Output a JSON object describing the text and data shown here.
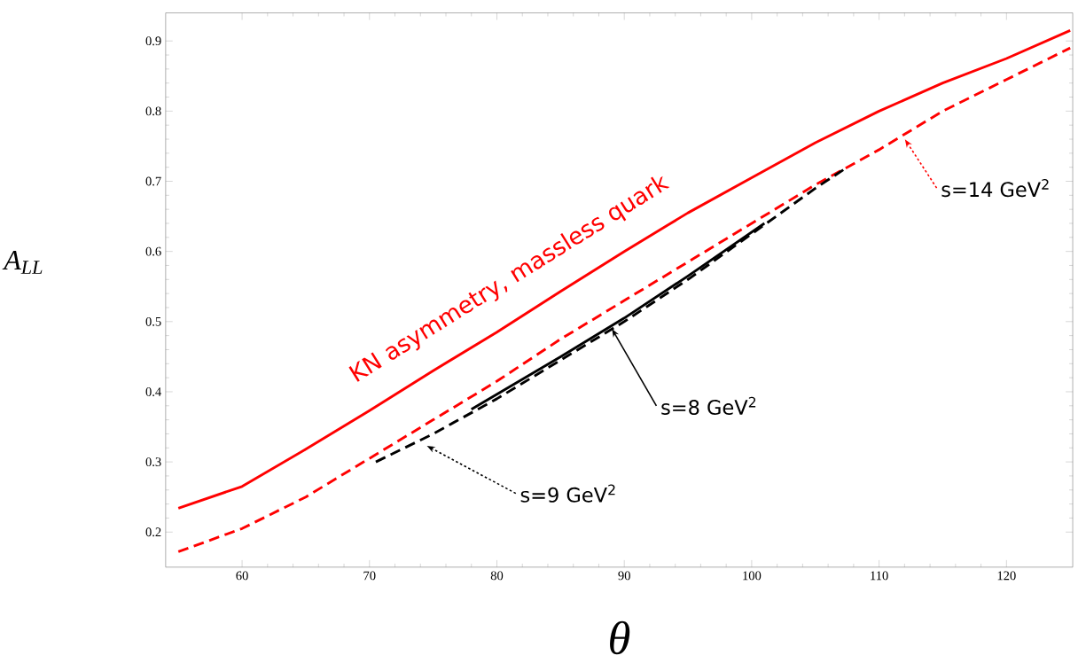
{
  "chart_data": {
    "type": "line",
    "xlabel": "θ",
    "ylabel": "A$_{LL}$",
    "xlim": [
      54,
      125.2
    ],
    "ylim": [
      0.15,
      0.94
    ],
    "xticks": [
      60,
      70,
      80,
      90,
      100,
      110,
      120
    ],
    "yticks": [
      0.2,
      0.3,
      0.4,
      0.5,
      0.6,
      0.7,
      0.8,
      0.9
    ],
    "grid": false,
    "marker": "none",
    "series": [
      {
        "color": "#ff0000",
        "line_style": "solid",
        "x": [
          55,
          60,
          65,
          70,
          75,
          80,
          85,
          90,
          95,
          100,
          105,
          110,
          115,
          120,
          125
        ],
        "values": [
          0.234,
          0.265,
          0.318,
          0.373,
          0.43,
          0.485,
          0.543,
          0.6,
          0.655,
          0.705,
          0.755,
          0.8,
          0.84,
          0.875,
          0.915
        ]
      },
      {
        "color": "#ff0000",
        "line_style": "dashed",
        "x": [
          55,
          60,
          65,
          70,
          75,
          80,
          85,
          90,
          95,
          100,
          105,
          110,
          115,
          120,
          125
        ],
        "values": [
          0.172,
          0.205,
          0.25,
          0.305,
          0.36,
          0.415,
          0.475,
          0.53,
          0.585,
          0.64,
          0.695,
          0.745,
          0.8,
          0.845,
          0.89
        ]
      },
      {
        "color": "#000000",
        "line_style": "dashed",
        "x": [
          70.5,
          75,
          80,
          85,
          90,
          95,
          100,
          105,
          107.5
        ],
        "values": [
          0.3,
          0.34,
          0.39,
          0.445,
          0.5,
          0.56,
          0.625,
          0.69,
          0.72
        ]
      },
      {
        "color": "#000000",
        "line_style": "solid",
        "x": [
          78,
          85,
          90,
          95,
          101
        ],
        "values": [
          0.375,
          0.45,
          0.505,
          0.565,
          0.64
        ]
      }
    ],
    "annotations": [
      "KN asymmetry, massless quark",
      "s=14 GeV$^{2}$",
      "s=8 GeV$^{2}$",
      "s=9 GeV$^{2}$"
    ]
  }
}
